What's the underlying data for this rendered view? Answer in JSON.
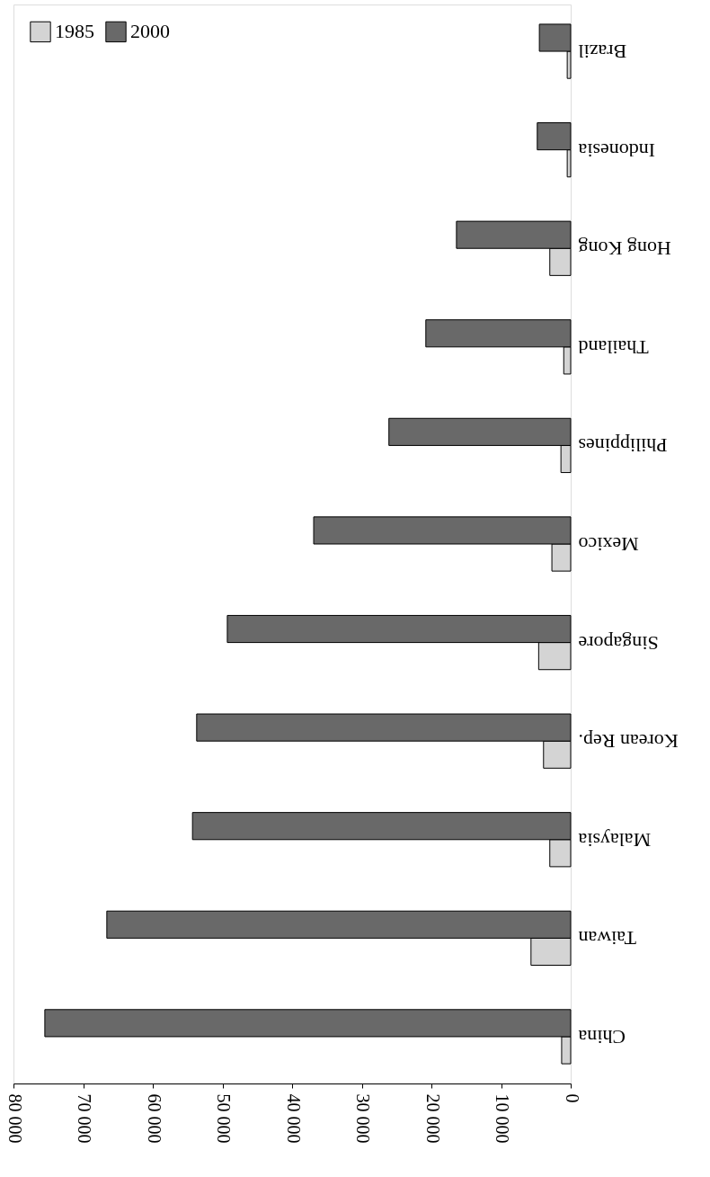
{
  "chart_data": {
    "type": "bar",
    "orientation": "horizontal",
    "categories": [
      "Brazil",
      "Indonesia",
      "Hong Kong",
      "Thailand",
      "Philippines",
      "Mexico",
      "Singapore",
      "Korean Rep.",
      "Malaysia",
      "Taiwan",
      "China"
    ],
    "series": [
      {
        "name": "1985",
        "color": "#d4d4d4",
        "values": [
          500,
          500,
          3000,
          1000,
          1400,
          2700,
          4600,
          3900,
          3000,
          5700,
          1300
        ]
      },
      {
        "name": "2000",
        "color": "#696969",
        "values": [
          4500,
          4800,
          16400,
          20800,
          26100,
          36900,
          49300,
          53700,
          54300,
          66600,
          75500
        ]
      }
    ],
    "xlim": [
      80000,
      0
    ],
    "xticks": [
      0,
      10000,
      20000,
      30000,
      40000,
      50000,
      60000,
      70000,
      80000
    ],
    "grid": false,
    "legend": "top left"
  }
}
